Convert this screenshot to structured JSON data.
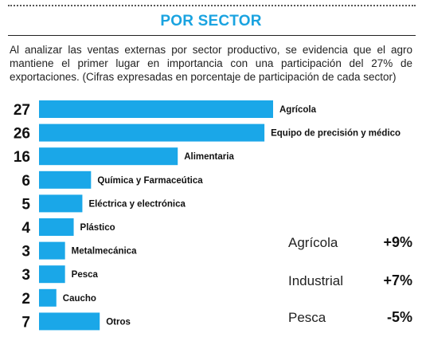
{
  "header": {
    "title": "POR SECTOR",
    "description": "Al analizar las ventas externas por sector productivo,  se evidencia que el agro mantiene el primer lugar en importancia con una participación del 27% de exportaciones. (Cifras expresadas en porcentaje de participación de cada sector)"
  },
  "colors": {
    "accent": "#1aa3e0",
    "bar": "#1aa7e8"
  },
  "chart_data": {
    "type": "bar",
    "orientation": "horizontal",
    "categories": [
      "Agrícola",
      "Equipo de precisión y médico",
      "Alimentaria",
      "Química y Farmaceútica",
      "Eléctrica y electrónica",
      "Plástico",
      "Metalmecánica",
      "Pesca",
      "Caucho",
      "Otros"
    ],
    "values": [
      27,
      26,
      16,
      6,
      5,
      4,
      3,
      3,
      2,
      7
    ],
    "unit": "%"
  },
  "side_stats": [
    {
      "label": "Agrícola",
      "value": "+9%"
    },
    {
      "label": "Industrial",
      "value": "+7%"
    },
    {
      "label": "Pesca",
      "value": "-5%"
    }
  ]
}
